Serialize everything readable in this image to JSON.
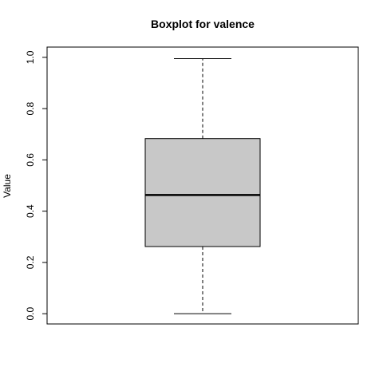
{
  "chart_data": {
    "type": "boxplot",
    "title": "Boxplot for valence",
    "xlabel": "",
    "ylabel": "Value",
    "ylim": [
      -0.04,
      1.04
    ],
    "yticks": [
      0.0,
      0.2,
      0.4,
      0.6,
      0.8,
      1.0
    ],
    "ytick_labels": [
      "0.0",
      "0.2",
      "0.4",
      "0.6",
      "0.8",
      "1.0"
    ],
    "box": {
      "min": 0.0,
      "q1": 0.262,
      "median": 0.463,
      "q3": 0.683,
      "max": 0.995
    },
    "grid": false,
    "box_color": "#c8c8c8"
  }
}
